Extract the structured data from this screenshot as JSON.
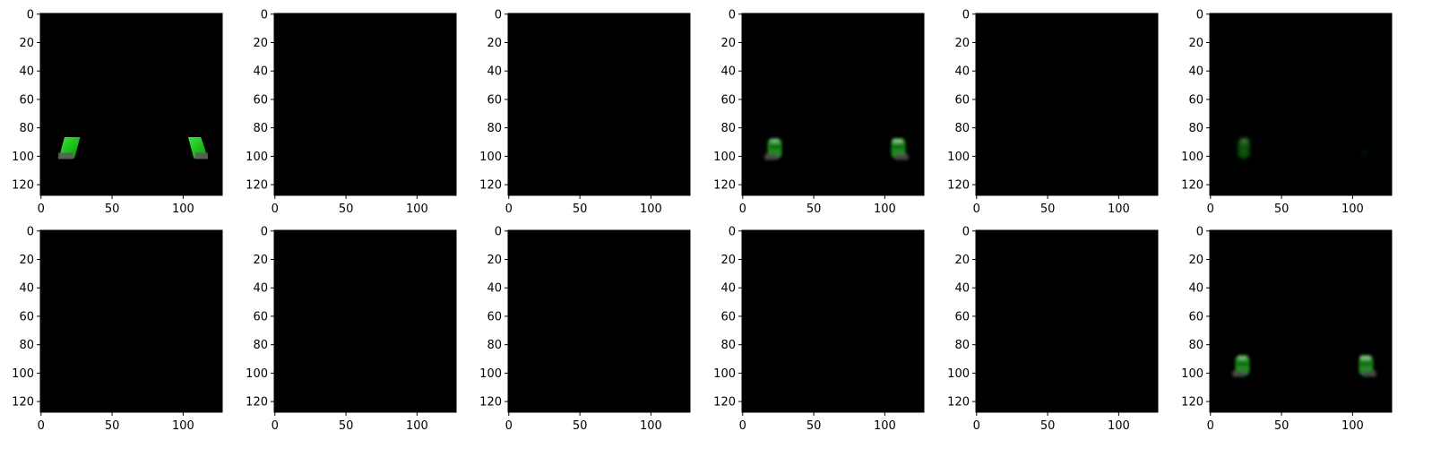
{
  "figure": {
    "rows": 2,
    "cols": 6,
    "background": "#ffffff",
    "image_fill": "#000000",
    "object_color": "#22c022",
    "shadow_color": "#5a5a5a",
    "x_ticks": [
      "0",
      "50",
      "100"
    ],
    "y_ticks": [
      "0",
      "20",
      "40",
      "60",
      "80",
      "100",
      "120"
    ],
    "panels": [
      {
        "id": "r1c1",
        "content": "sharp"
      },
      {
        "id": "r1c2",
        "content": "empty"
      },
      {
        "id": "r1c3",
        "content": "empty"
      },
      {
        "id": "r1c4",
        "content": "blurred"
      },
      {
        "id": "r1c5",
        "content": "empty"
      },
      {
        "id": "r1c6",
        "content": "faint"
      },
      {
        "id": "r2c1",
        "content": "empty"
      },
      {
        "id": "r2c2",
        "content": "empty"
      },
      {
        "id": "r2c3",
        "content": "empty"
      },
      {
        "id": "r2c4",
        "content": "empty"
      },
      {
        "id": "r2c5",
        "content": "empty"
      },
      {
        "id": "r2c6",
        "content": "blurred"
      }
    ]
  }
}
